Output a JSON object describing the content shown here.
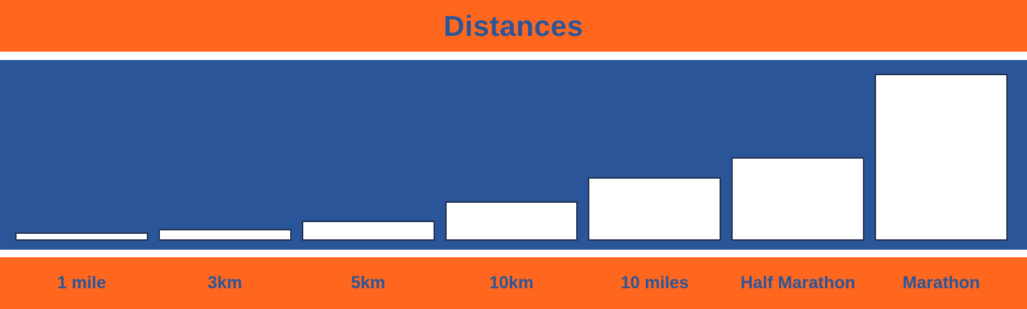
{
  "title": "Distances",
  "colors": {
    "banner_orange": "#FF671F",
    "chart_blue": "#2A5699",
    "text_blue": "#2A5699",
    "bar_fill": "#FFFFFF",
    "bar_border": "#1F3050"
  },
  "chart_data": {
    "type": "bar",
    "title": "Distances",
    "categories": [
      "1 mile",
      "3km",
      "5km",
      "10km",
      "10 miles",
      "Half Marathon",
      "Marathon"
    ],
    "values": [
      1.6,
      3,
      5,
      10,
      16.1,
      21.1,
      42.2
    ],
    "unit": "km (estimated from bar heights; bars unlabeled)",
    "xlabel": "",
    "ylabel": "",
    "ylim": [
      0,
      42.2
    ],
    "grid": false,
    "legend": false,
    "bar_color": "#FFFFFF",
    "background_color": "#2A5699"
  }
}
